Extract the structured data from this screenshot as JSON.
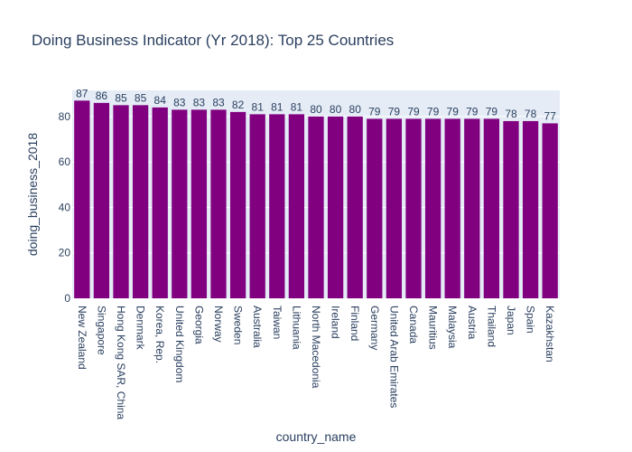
{
  "chart_data": {
    "type": "bar",
    "title": "Doing Business Indicator (Yr 2018): Top 25 Countries",
    "xlabel": "country_name",
    "ylabel": "doing_business_2018",
    "categories": [
      "New Zealand",
      "Singapore",
      "Hong Kong SAR, China",
      "Denmark",
      "Korea, Rep.",
      "United Kingdom",
      "Georgia",
      "Norway",
      "Sweden",
      "Australia",
      "Taiwan",
      "Lithuania",
      "North Macedonia",
      "Ireland",
      "Finland",
      "Germany",
      "United Arab Emirates",
      "Canada",
      "Mauritius",
      "Malaysia",
      "Austria",
      "Thailand",
      "Japan",
      "Spain",
      "Kazakhstan"
    ],
    "values": [
      87,
      86,
      85,
      85,
      84,
      83,
      83,
      83,
      82,
      81,
      81,
      81,
      80,
      80,
      80,
      79,
      79,
      79,
      79,
      79,
      79,
      79,
      78,
      78,
      77
    ],
    "data_labels": [
      "87",
      "86",
      "85",
      "85",
      "84",
      "83",
      "83",
      "83",
      "82",
      "81",
      "81",
      "81",
      "80",
      "80",
      "80",
      "79",
      "79",
      "79",
      "79",
      "79",
      "79",
      "79",
      "78",
      "78",
      "77"
    ],
    "yticks": [
      0,
      20,
      40,
      60,
      80
    ],
    "ylim": [
      0,
      91.5
    ],
    "grid": true,
    "bar_color": "#800080",
    "plot_bgcolor": "#e5ecf6",
    "gridline_color": "#ffffff",
    "text_color": "#2a3f5f"
  }
}
